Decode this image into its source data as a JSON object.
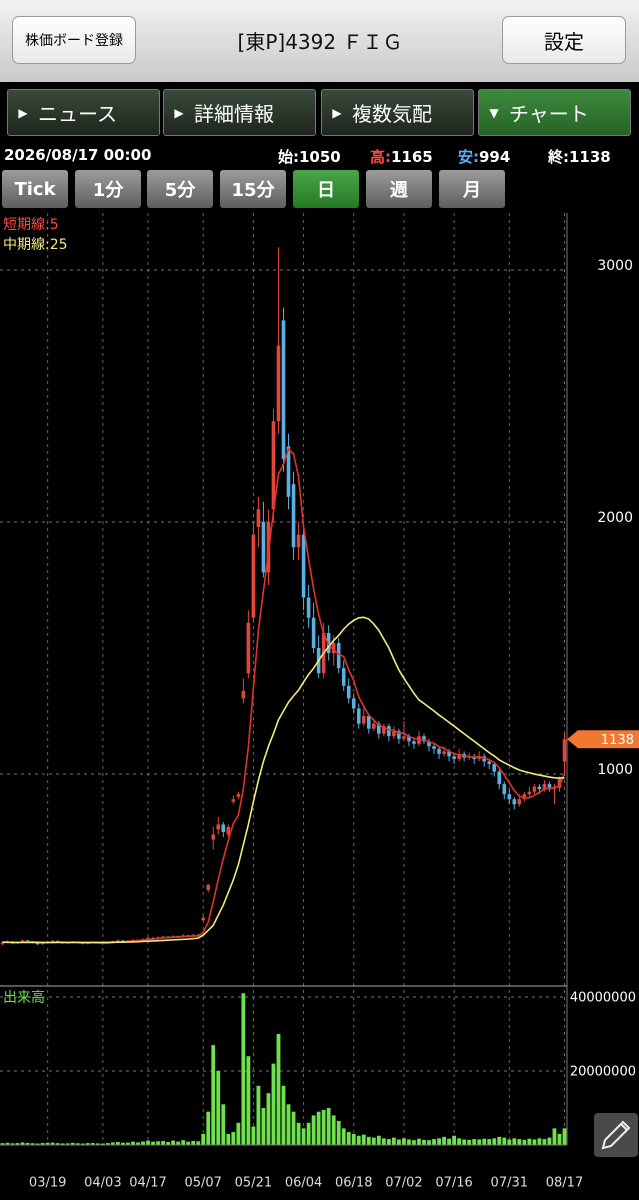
{
  "header": {
    "left_button": "株価ボード登録",
    "title": "[東P]4392 ＦＩＧ",
    "right_button": "設定"
  },
  "tabs": [
    "ニュース",
    "詳細情報",
    "複数気配",
    "チャート"
  ],
  "quote": {
    "datetime": "2026/08/17 00:00",
    "open_label": "始:",
    "high_label": "高:",
    "low_label": "安:",
    "close_label": "終:"
  },
  "periods": [
    "Tick",
    "1分",
    "5分",
    "15分",
    "日",
    "週",
    "月"
  ],
  "chart_data": {
    "type": "candlestick",
    "categories": [
      null,
      null,
      null,
      null,
      null,
      null,
      null,
      null,
      null,
      "03/19",
      null,
      null,
      null,
      null,
      null,
      null,
      null,
      null,
      null,
      null,
      "04/03",
      null,
      null,
      null,
      null,
      null,
      null,
      null,
      null,
      "04/17",
      null,
      null,
      null,
      null,
      null,
      null,
      null,
      null,
      null,
      null,
      "05/07",
      null,
      null,
      null,
      null,
      null,
      null,
      null,
      null,
      null,
      "05/21",
      null,
      null,
      null,
      null,
      null,
      null,
      null,
      null,
      null,
      "06/04",
      null,
      null,
      null,
      null,
      null,
      null,
      null,
      null,
      null,
      "06/18",
      null,
      null,
      null,
      null,
      null,
      null,
      null,
      null,
      null,
      "07/02",
      null,
      null,
      null,
      null,
      null,
      null,
      null,
      null,
      null,
      "07/16",
      null,
      null,
      null,
      null,
      null,
      null,
      null,
      null,
      null,
      null,
      "07/31",
      null,
      null,
      null,
      null,
      null,
      null,
      null,
      null,
      null,
      null,
      "08/17"
    ],
    "open": [
      325,
      330,
      335,
      328,
      332,
      340,
      336,
      330,
      325,
      330,
      334,
      338,
      332,
      329,
      331,
      335,
      330,
      326,
      330,
      333,
      329,
      327,
      331,
      336,
      340,
      335,
      338,
      342,
      339,
      345,
      350,
      348,
      352,
      355,
      350,
      357,
      352,
      360,
      356,
      362,
      420,
      540,
      740,
      780,
      800,
      760,
      890,
      910,
      1300,
      1400,
      1620,
      1980,
      2000,
      1800,
      2050,
      2400,
      2800,
      2300,
      2150,
      1900,
      1950,
      1700,
      1620,
      1500,
      1400,
      1560,
      1480,
      1520,
      1420,
      1350,
      1300,
      1260,
      1200,
      1230,
      1180,
      1200,
      1160,
      1190,
      1150,
      1170,
      1140,
      1150,
      1130,
      1120,
      1150,
      1130,
      1110,
      1100,
      1080,
      1090,
      1070,
      1060,
      1080,
      1065,
      1070,
      1060,
      1070,
      1050,
      1040,
      1010,
      960,
      920,
      900,
      880,
      900,
      920,
      930,
      950,
      940,
      960,
      940,
      945,
      1050
    ],
    "high": [
      338,
      340,
      337,
      336,
      344,
      342,
      338,
      332,
      334,
      337,
      342,
      340,
      334,
      334,
      338,
      336,
      331,
      333,
      336,
      335,
      330,
      334,
      339,
      344,
      341,
      341,
      346,
      344,
      349,
      355,
      353,
      356,
      359,
      357,
      360,
      359,
      364,
      362,
      366,
      365,
      440,
      565,
      790,
      830,
      810,
      800,
      915,
      930,
      1380,
      1650,
      2000,
      2100,
      2080,
      2050,
      2450,
      3090,
      2850,
      2350,
      2200,
      2000,
      1980,
      1750,
      1680,
      1550,
      1600,
      1590,
      1550,
      1540,
      1450,
      1380,
      1320,
      1280,
      1260,
      1240,
      1220,
      1210,
      1200,
      1200,
      1190,
      1180,
      1210,
      1160,
      1140,
      1170,
      1160,
      1140,
      1120,
      1110,
      1110,
      1100,
      1080,
      1100,
      1090,
      1085,
      1080,
      1090,
      1080,
      1060,
      1050,
      1020,
      970,
      940,
      910,
      920,
      930,
      950,
      960,
      960,
      975,
      970,
      960,
      990,
      1165
    ],
    "low": [
      322,
      328,
      325,
      326,
      330,
      333,
      328,
      322,
      323,
      328,
      332,
      330,
      327,
      327,
      329,
      328,
      324,
      325,
      328,
      327,
      325,
      326,
      330,
      334,
      333,
      333,
      336,
      337,
      338,
      343,
      345,
      346,
      350,
      348,
      349,
      350,
      351,
      354,
      355,
      355,
      415,
      530,
      700,
      760,
      750,
      750,
      880,
      900,
      1280,
      1380,
      1600,
      1900,
      1780,
      1750,
      2000,
      2350,
      2200,
      2050,
      1850,
      1850,
      1650,
      1580,
      1480,
      1380,
      1380,
      1450,
      1430,
      1400,
      1330,
      1280,
      1240,
      1180,
      1190,
      1160,
      1170,
      1140,
      1150,
      1130,
      1140,
      1120,
      1130,
      1110,
      1100,
      1110,
      1120,
      1090,
      1080,
      1060,
      1070,
      1050,
      1040,
      1050,
      1050,
      1055,
      1040,
      1050,
      1030,
      1020,
      990,
      940,
      900,
      880,
      860,
      870,
      890,
      910,
      920,
      920,
      930,
      930,
      880,
      930,
      994
    ],
    "close": [
      330,
      335,
      328,
      332,
      340,
      336,
      330,
      325,
      330,
      334,
      338,
      332,
      329,
      331,
      335,
      330,
      326,
      330,
      333,
      329,
      327,
      331,
      336,
      340,
      335,
      338,
      342,
      339,
      345,
      350,
      348,
      352,
      355,
      350,
      357,
      352,
      360,
      356,
      362,
      358,
      430,
      560,
      760,
      800,
      770,
      790,
      900,
      920,
      1330,
      1600,
      1950,
      2050,
      1800,
      2000,
      2400,
      2700,
      2250,
      2100,
      1900,
      1950,
      1700,
      1620,
      1500,
      1400,
      1560,
      1480,
      1520,
      1420,
      1350,
      1300,
      1260,
      1200,
      1230,
      1180,
      1200,
      1160,
      1190,
      1150,
      1170,
      1140,
      1150,
      1130,
      1120,
      1150,
      1130,
      1110,
      1100,
      1080,
      1090,
      1070,
      1060,
      1080,
      1065,
      1070,
      1060,
      1070,
      1050,
      1040,
      1010,
      960,
      920,
      900,
      880,
      900,
      920,
      930,
      950,
      940,
      960,
      940,
      945,
      980,
      1138
    ],
    "up_color": "#e0463c",
    "down_color": "#5ab0e0",
    "series": [
      {
        "name": "短期線:5",
        "color": "#e0332b",
        "values": [
          332,
          333,
          331,
          331,
          333,
          334,
          334,
          333,
          331,
          331,
          331,
          333,
          333,
          332,
          333,
          331,
          330,
          330,
          331,
          330,
          329,
          330,
          331,
          333,
          334,
          336,
          338,
          339,
          340,
          343,
          345,
          347,
          350,
          351,
          352,
          353,
          355,
          356,
          357,
          358,
          372,
          412,
          493,
          582,
          664,
          736,
          804,
          836,
          942,
          1108,
          1340,
          1570,
          1727,
          1880,
          2040,
          2190,
          2230,
          2290,
          2270,
          2180,
          1980,
          1854,
          1734,
          1634,
          1556,
          1512,
          1492,
          1476,
          1466,
          1414,
          1370,
          1306,
          1268,
          1234,
          1214,
          1194,
          1186,
          1176,
          1174,
          1162,
          1162,
          1148,
          1142,
          1138,
          1136,
          1128,
          1122,
          1108,
          1102,
          1090,
          1080,
          1076,
          1073,
          1069,
          1067,
          1069,
          1063,
          1057,
          1046,
          1024,
          996,
          966,
          934,
          912,
          904,
          906,
          916,
          928,
          940,
          944,
          947,
          953,
          1002
        ]
      },
      {
        "name": "中期線:25",
        "color": "#f2ea7a",
        "values": [
          333,
          333,
          332,
          332,
          332,
          332,
          332,
          332,
          332,
          332,
          332,
          332,
          332,
          332,
          332,
          332,
          332,
          332,
          332,
          332,
          332,
          332,
          333,
          333,
          333,
          334,
          334,
          335,
          336,
          337,
          338,
          339,
          340,
          341,
          342,
          343,
          344,
          345,
          347,
          349,
          361,
          380,
          400,
          440,
          480,
          530,
          580,
          640,
          720,
          800,
          890,
          975,
          1050,
          1110,
          1160,
          1215,
          1250,
          1285,
          1310,
          1333,
          1365,
          1395,
          1420,
          1450,
          1480,
          1505,
          1530,
          1550,
          1575,
          1595,
          1610,
          1620,
          1622,
          1615,
          1595,
          1570,
          1535,
          1500,
          1455,
          1413,
          1380,
          1350,
          1320,
          1294,
          1280,
          1265,
          1250,
          1234,
          1220,
          1205,
          1190,
          1175,
          1160,
          1145,
          1130,
          1115,
          1100,
          1085,
          1072,
          1056,
          1045,
          1035,
          1025,
          1016,
          1010,
          1005,
          1000,
          996,
          992,
          988,
          985,
          984,
          985
        ]
      }
    ],
    "ylim": [
      163,
      3226
    ],
    "yticks": [
      1000,
      2000,
      3000
    ],
    "grid": true,
    "last_price_color": "#f07830",
    "volume": {
      "title": "出来高",
      "color": "#6fe04e",
      "values": [
        500000,
        600000,
        450000,
        520000,
        700000,
        550000,
        480000,
        400000,
        520000,
        600000,
        650000,
        500000,
        420000,
        450000,
        580000,
        470000,
        400000,
        520000,
        560000,
        430000,
        400000,
        520000,
        700000,
        800000,
        600000,
        650000,
        900000,
        700000,
        950000,
        1200000,
        900000,
        1000000,
        1100000,
        800000,
        1200000,
        900000,
        1300000,
        900000,
        1100000,
        1000000,
        3000000,
        9000000,
        27000000,
        20000000,
        11000000,
        3000000,
        3500000,
        6000000,
        41000000,
        24000000,
        5000000,
        16000000,
        10000000,
        14000000,
        22000000,
        30000000,
        16000000,
        11000000,
        9000000,
        6000000,
        4500000,
        6000000,
        8000000,
        9000000,
        9500000,
        10000000,
        8000000,
        6500000,
        4500000,
        3500000,
        3000000,
        2500000,
        2800000,
        2200000,
        2000000,
        2500000,
        1800000,
        1600000,
        2000000,
        1500000,
        1800000,
        1500000,
        1300000,
        1700000,
        1400000,
        1300000,
        1600000,
        1800000,
        2200000,
        1700000,
        2500000,
        1800000,
        1500000,
        1400000,
        1600000,
        1500000,
        1700000,
        1600000,
        1800000,
        2200000,
        2000000,
        1500000,
        1800000,
        1600000,
        1400000,
        1700000,
        1500000,
        1800000,
        1600000,
        2000000,
        4500000,
        3000000,
        4500000
      ],
      "ylim": [
        0,
        42700000
      ],
      "yticks": [
        20000000,
        40000000
      ]
    }
  }
}
